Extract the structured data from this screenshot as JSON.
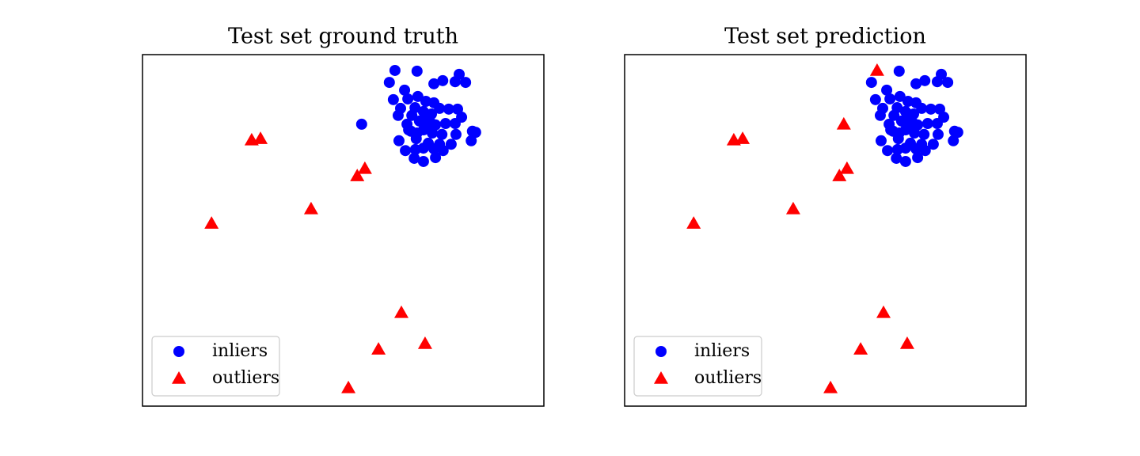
{
  "chart_data": [
    {
      "type": "scatter",
      "title": "Test set ground truth",
      "xlim": [
        0,
        100
      ],
      "ylim": [
        0,
        100
      ],
      "legend": "lower left",
      "series": [
        {
          "name": "inliers",
          "color": "#0000ff",
          "marker": "o",
          "x": [
            62.9,
            68.4,
            61.5,
            78.9,
            80.5,
            77.9,
            74.8,
            72.6,
            65.3,
            54.6,
            62.5,
            66.1,
            68.6,
            70.6,
            72.6,
            64.3,
            67.9,
            63.7,
            67.1,
            70.0,
            72.0,
            74.0,
            76.3,
            78.5,
            79.5,
            65.9,
            69.0,
            71.0,
            73.0,
            75.5,
            77.9,
            82.2,
            83.0,
            66.9,
            70.0,
            72.2,
            74.6,
            78.1,
            81.9,
            63.9,
            68.2,
            71.2,
            74.0,
            76.9,
            65.5,
            68.0,
            70.0,
            72.6,
            74.9,
            67.7,
            70.0,
            73.0,
            66.3,
            68.4,
            72.0,
            70.6
          ],
          "values": [
            95.5,
            95.3,
            92.1,
            94.4,
            92.1,
            92.3,
            92.6,
            91.7,
            89.9,
            80.2,
            87.2,
            87.4,
            88.1,
            86.7,
            86.3,
            84.7,
            84.9,
            82.7,
            82.7,
            83.8,
            83.1,
            84.7,
            84.5,
            84.5,
            82.2,
            80.2,
            81.1,
            81.8,
            80.0,
            80.4,
            80.4,
            78.2,
            77.9,
            78.2,
            78.6,
            77.7,
            77.3,
            77.3,
            75.5,
            75.5,
            76.1,
            74.8,
            74.5,
            74.5,
            72.7,
            73.0,
            73.4,
            73.2,
            72.7,
            70.5,
            69.6,
            70.7,
            78.6,
            77.7,
            80.4,
            79.5
          ]
        },
        {
          "name": "outliers",
          "color": "#ff0000",
          "marker": "^",
          "x": [
            27.2,
            29.4,
            17.2,
            42.0,
            53.5,
            55.4,
            64.5,
            58.8,
            70.4,
            51.3
          ],
          "values": [
            75.7,
            76.1,
            52.0,
            56.1,
            65.5,
            67.6,
            26.6,
            16.2,
            17.8,
            5.2
          ]
        }
      ]
    },
    {
      "type": "scatter",
      "title": "Test set prediction",
      "xlim": [
        0,
        100
      ],
      "ylim": [
        0,
        100
      ],
      "legend": "lower left",
      "series": [
        {
          "name": "inliers",
          "color": "#0000ff",
          "marker": "o",
          "x": [
            68.4,
            61.5,
            78.9,
            80.5,
            77.9,
            74.8,
            72.6,
            65.3,
            62.5,
            66.1,
            68.6,
            70.6,
            72.6,
            64.3,
            67.9,
            63.7,
            67.1,
            70.0,
            72.0,
            74.0,
            76.3,
            78.5,
            79.5,
            65.9,
            69.0,
            71.0,
            73.0,
            75.5,
            77.9,
            82.2,
            83.0,
            66.9,
            70.0,
            72.2,
            74.6,
            78.1,
            81.9,
            63.9,
            68.2,
            71.2,
            74.0,
            76.9,
            65.5,
            68.0,
            70.0,
            72.6,
            74.9,
            67.7,
            70.0,
            73.0,
            66.3,
            68.4,
            72.0,
            70.6
          ],
          "values": [
            95.3,
            92.1,
            94.4,
            92.1,
            92.3,
            92.6,
            91.7,
            89.9,
            87.2,
            87.4,
            88.1,
            86.7,
            86.3,
            84.7,
            84.9,
            82.7,
            82.7,
            83.8,
            83.1,
            84.7,
            84.5,
            84.5,
            82.2,
            80.2,
            81.1,
            81.8,
            80.0,
            80.4,
            80.4,
            78.2,
            77.9,
            78.2,
            78.6,
            77.7,
            77.3,
            77.3,
            75.5,
            75.5,
            76.1,
            74.8,
            74.5,
            74.5,
            72.7,
            73.0,
            73.4,
            73.2,
            72.7,
            70.5,
            69.6,
            70.7,
            78.6,
            77.7,
            80.4,
            79.5
          ]
        },
        {
          "name": "outliers",
          "color": "#ff0000",
          "marker": "^",
          "x": [
            27.2,
            29.4,
            17.2,
            42.0,
            53.5,
            55.4,
            64.5,
            58.8,
            70.4,
            51.3,
            54.6,
            62.9
          ],
          "values": [
            75.7,
            76.1,
            52.0,
            56.1,
            65.5,
            67.6,
            26.6,
            16.2,
            17.8,
            5.2,
            80.2,
            95.5
          ]
        }
      ]
    }
  ]
}
